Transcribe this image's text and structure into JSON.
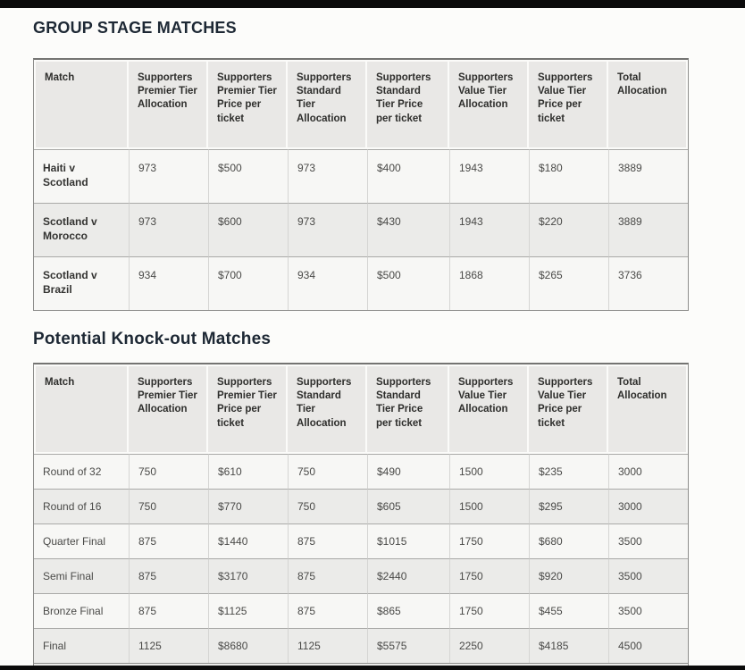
{
  "page": {
    "background_color": "#fcfcfa",
    "crop_bar_color": "#0b0b0b",
    "heading_color": "#1d2834",
    "header_cell_color": "#e9e8e6",
    "row_odd_color": "#f7f7f5",
    "row_even_color": "#ebebe9"
  },
  "sections": [
    {
      "heading": "GROUP STAGE MATCHES",
      "columns": [
        "Match",
        "Supporters Premier Tier Allocation",
        "Supporters Premier Tier Price per ticket",
        "Supporters Standard Tier Allocation",
        "Supporters Standard Tier Price per ticket",
        "Supporters Value Tier Allocation",
        "Supporters Value Tier Price per ticket",
        "Total Allocation"
      ],
      "rows": [
        {
          "match": "Haiti v Scotland",
          "values": [
            "973",
            "$500",
            "973",
            "$400",
            "1943",
            "$180",
            "3889"
          ]
        },
        {
          "match": "Scotland v Morocco",
          "values": [
            "973",
            "$600",
            "973",
            "$430",
            "1943",
            "$220",
            "3889"
          ]
        },
        {
          "match": "Scotland v Brazil",
          "values": [
            "934",
            "$700",
            "934",
            "$500",
            "1868",
            "$265",
            "3736"
          ]
        }
      ]
    },
    {
      "heading": "Potential Knock-out Matches",
      "columns": [
        "Match",
        "Supporters Premier Tier Allocation",
        "Supporters Premier Tier Price per ticket",
        "Supporters Standard Tier Allocation",
        "Supporters Standard Tier Price per ticket",
        "Supporters Value Tier Allocation",
        "Supporters Value Tier Price per ticket",
        "Total Allocation"
      ],
      "rows": [
        {
          "match": "Round of 32",
          "values": [
            "750",
            "$610",
            "750",
            "$490",
            "1500",
            "$235",
            "3000"
          ]
        },
        {
          "match": "Round of 16",
          "values": [
            "750",
            "$770",
            "750",
            "$605",
            "1500",
            "$295",
            "3000"
          ]
        },
        {
          "match": "Quarter Final",
          "values": [
            "875",
            "$1440",
            "875",
            "$1015",
            "1750",
            "$680",
            "3500"
          ]
        },
        {
          "match": "Semi Final",
          "values": [
            "875",
            "$3170",
            "875",
            "$2440",
            "1750",
            "$920",
            "3500"
          ]
        },
        {
          "match": "Bronze Final",
          "values": [
            "875",
            "$1125",
            "875",
            "$865",
            "1750",
            "$455",
            "3500"
          ]
        },
        {
          "match": "Final",
          "values": [
            "1125",
            "$8680",
            "1125",
            "$5575",
            "2250",
            "$4185",
            "4500"
          ]
        }
      ]
    }
  ]
}
